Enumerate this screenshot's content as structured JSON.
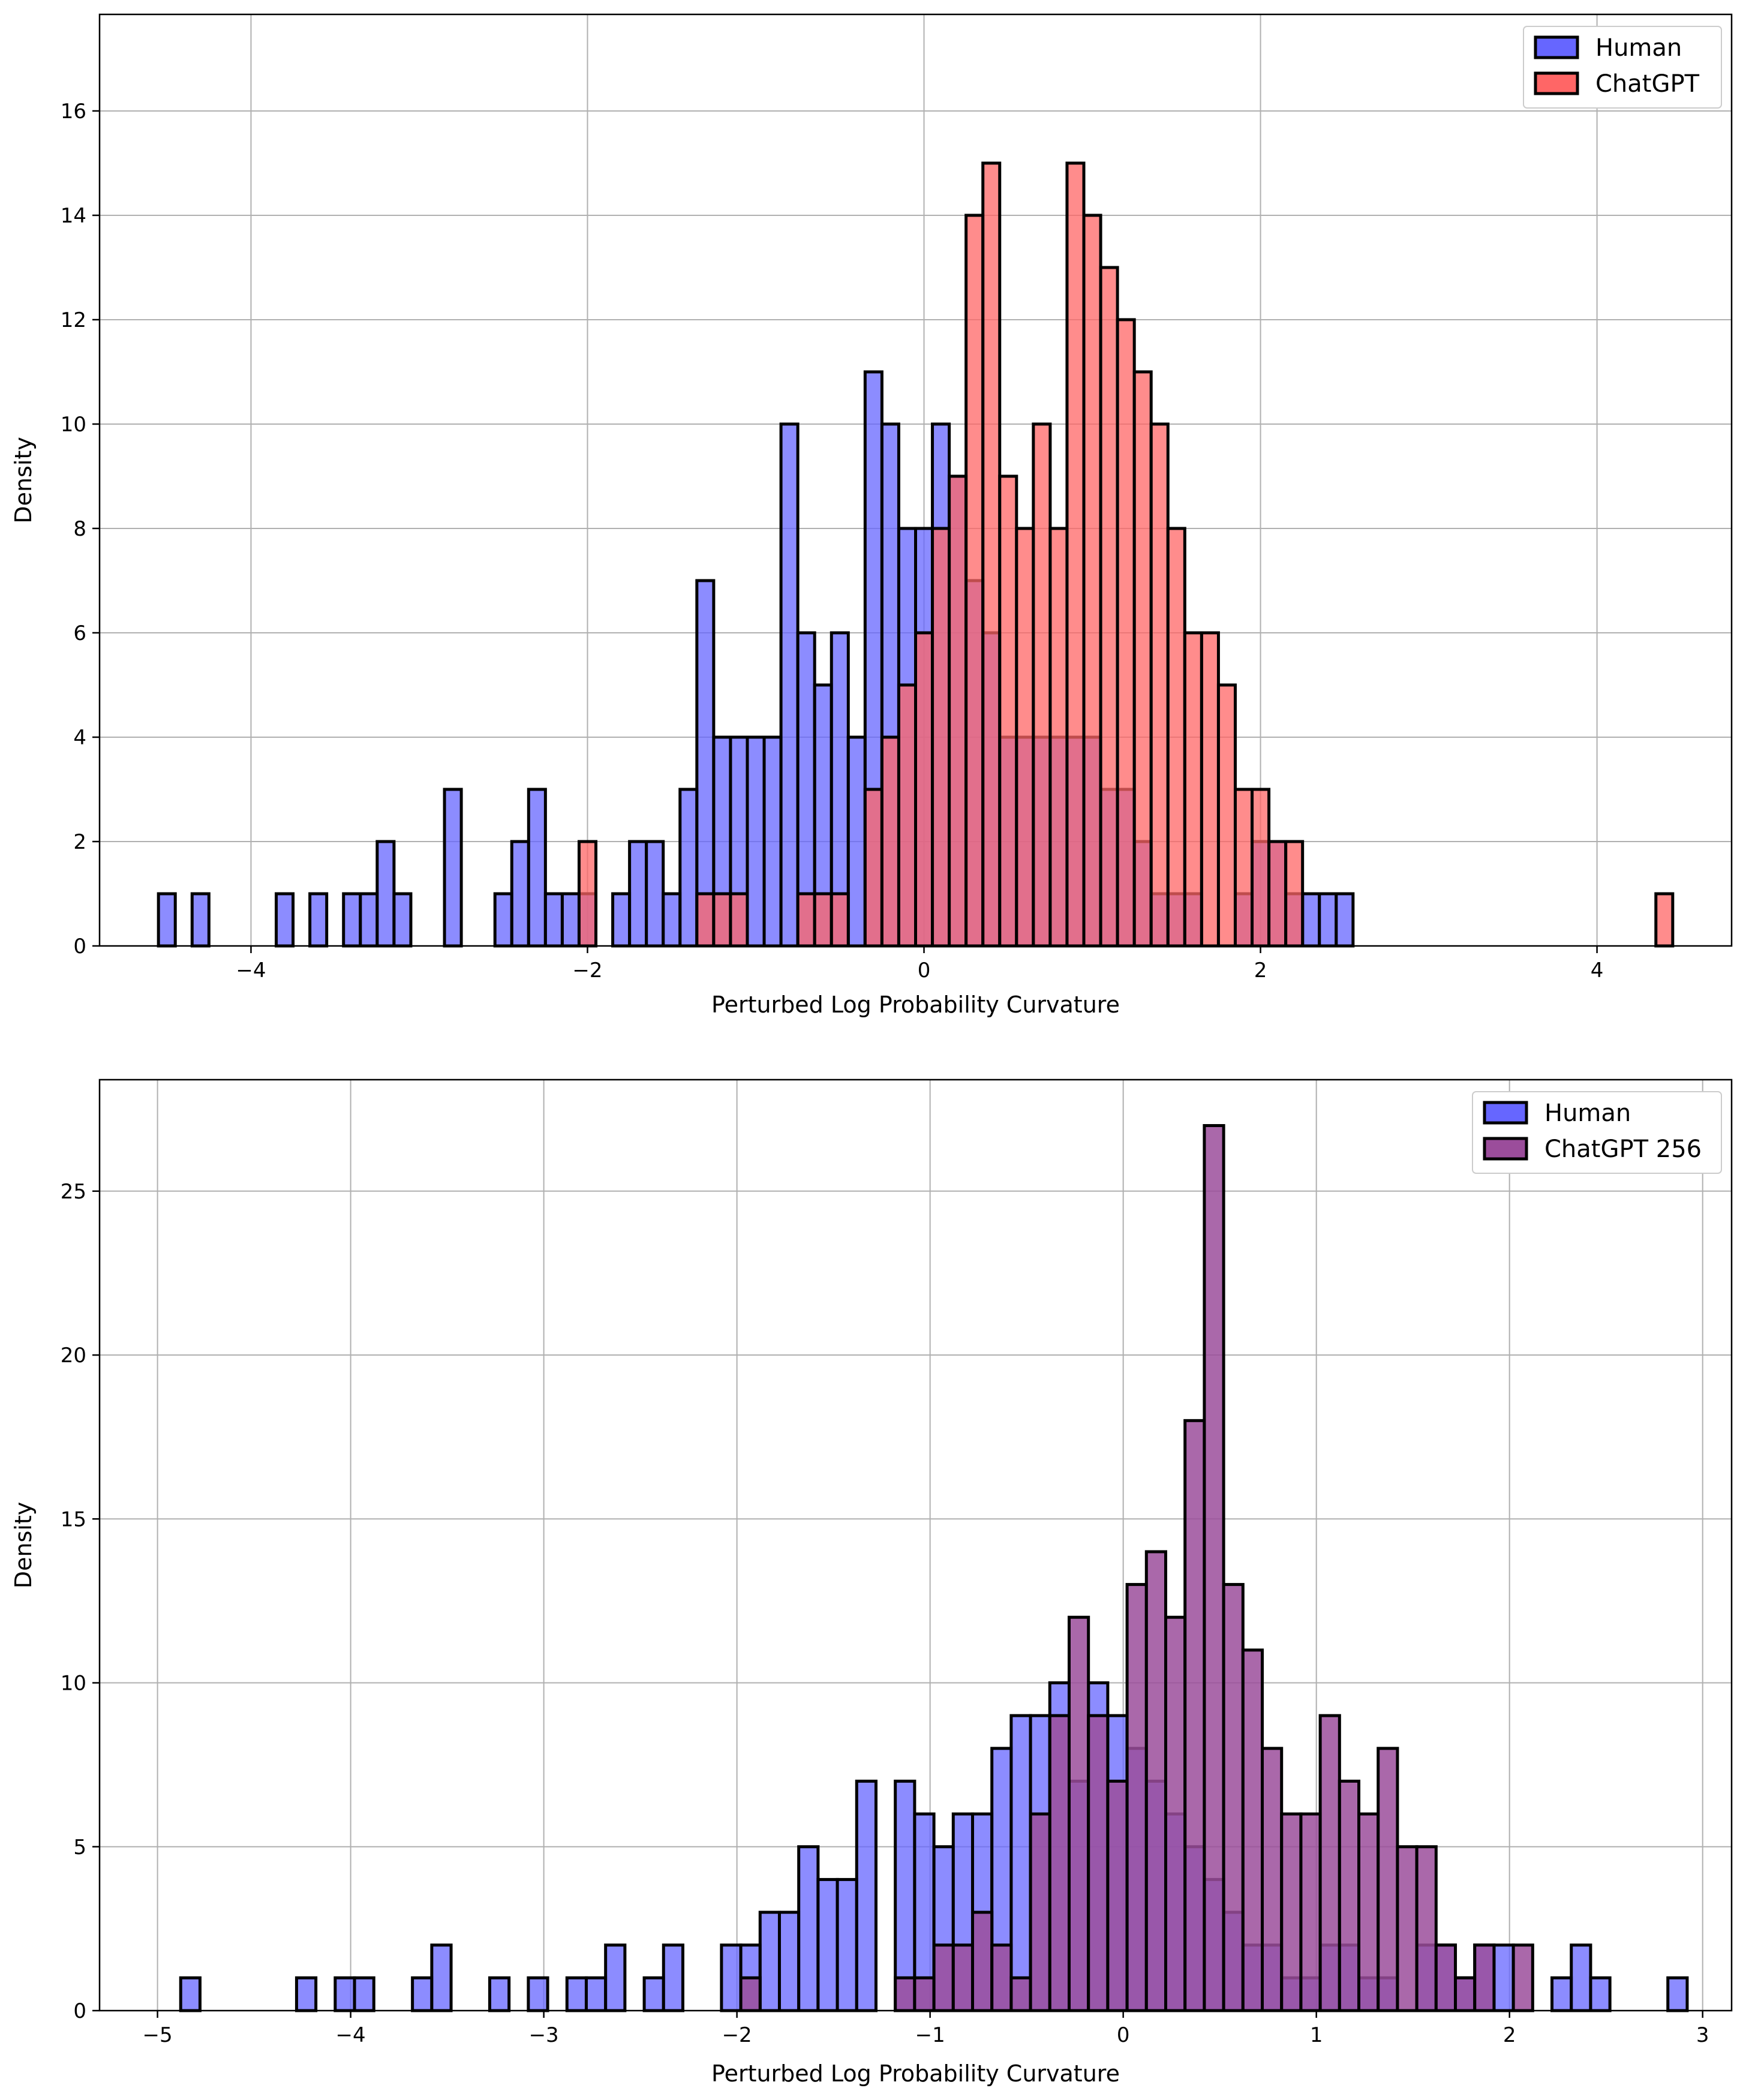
{
  "chart_data": [
    {
      "type": "histogram",
      "title": "",
      "xlabel": "Perturbed Log Probability Curvature",
      "ylabel": "Density",
      "xlim": [
        -4.9,
        4.8
      ],
      "ylim": [
        0,
        17.85
      ],
      "xticks": [
        -4,
        -2,
        0,
        2,
        4
      ],
      "xtick_labels": [
        "−4",
        "−2",
        "0",
        "2",
        "4"
      ],
      "yticks": [
        0,
        2,
        4,
        6,
        8,
        10,
        12,
        14,
        16
      ],
      "ytick_labels": [
        "0",
        "2",
        "4",
        "6",
        "8",
        "10",
        "12",
        "14",
        "16"
      ],
      "grid": true,
      "legend_position": "top-right",
      "series": [
        {
          "name": "Human",
          "color": "#6666ff",
          "bin_start": -4.55,
          "bin_width": 0.1,
          "values": [
            1,
            0,
            1,
            0,
            0,
            0,
            0,
            1,
            0,
            1,
            0,
            1,
            1,
            2,
            1,
            0,
            0,
            3,
            0,
            0,
            1,
            2,
            3,
            1,
            1,
            1,
            0,
            1,
            2,
            2,
            1,
            3,
            7,
            4,
            4,
            4,
            4,
            10,
            6,
            5,
            6,
            4,
            11,
            10,
            8,
            8,
            10,
            9,
            7,
            6,
            4,
            4,
            4,
            4,
            4,
            4,
            3,
            3,
            2,
            1,
            1,
            1,
            0,
            0,
            1,
            2,
            2,
            1,
            1,
            1,
            1,
            0,
            0,
            0,
            0,
            0,
            0,
            0,
            0,
            0,
            0,
            0,
            0,
            0,
            0,
            0,
            0,
            0,
            0
          ],
          "note": "bins from -4.55 to 2.65 (last bin holds 1 value near 2.55)"
        },
        {
          "name": "ChatGPT",
          "color": "#ff6666",
          "bin_start": -2.05,
          "bin_width": 0.1,
          "values": [
            2,
            0,
            0,
            0,
            0,
            0,
            0,
            1,
            1,
            1,
            0,
            0,
            0,
            1,
            1,
            1,
            0,
            3,
            4,
            5,
            6,
            8,
            9,
            14,
            15,
            9,
            8,
            10,
            8,
            15,
            14,
            13,
            12,
            11,
            10,
            8,
            6,
            6,
            5,
            3,
            3,
            2,
            2,
            0,
            0,
            0,
            0,
            0,
            0,
            0,
            0,
            0,
            0,
            0,
            0,
            0,
            0,
            0,
            0,
            0,
            0,
            0,
            0,
            0,
            1
          ],
          "note": "bins from -2.05; isolated bar at ~4.3"
        }
      ]
    },
    {
      "type": "histogram",
      "title": "",
      "xlabel": "Perturbed Log Probability Curvature",
      "ylabel": "Density",
      "xlim": [
        -5.3,
        3.15
      ],
      "ylim": [
        0,
        28.4
      ],
      "xticks": [
        -5,
        -4,
        -3,
        -2,
        -1,
        0,
        1,
        2,
        3
      ],
      "xtick_labels": [
        "−5",
        "−4",
        "−3",
        "−2",
        "−1",
        "0",
        "1",
        "2",
        "3"
      ],
      "yticks": [
        0,
        5,
        10,
        15,
        20,
        25
      ],
      "ytick_labels": [
        "0",
        "5",
        "10",
        "15",
        "20",
        "25"
      ],
      "grid": true,
      "legend_position": "top-right",
      "series": [
        {
          "name": "Human",
          "color": "#6666ff",
          "bin_start": -4.88,
          "bin_width": 0.1,
          "values": [
            1,
            0,
            0,
            0,
            0,
            0,
            1,
            0,
            1,
            1,
            0,
            0,
            1,
            2,
            0,
            0,
            1,
            0,
            1,
            0,
            1,
            1,
            2,
            0,
            1,
            2,
            0,
            0,
            2,
            2,
            3,
            3,
            5,
            4,
            4,
            7,
            0,
            7,
            6,
            5,
            6,
            6,
            8,
            9,
            9,
            10,
            7,
            10,
            9,
            8,
            7,
            6,
            5,
            4,
            3,
            2,
            2,
            1,
            1,
            2,
            2,
            1,
            1,
            0,
            2,
            2,
            1,
            2,
            2,
            0,
            0,
            1,
            2,
            1,
            0,
            0,
            0,
            1,
            0,
            0,
            0
          ],
          "note": "human curvature histogram, last bin near 2.85"
        },
        {
          "name": "ChatGPT 256",
          "color": "#9b4d9b",
          "bin_start": -1.98,
          "bin_width": 0.1,
          "values": [
            1,
            0,
            0,
            0,
            0,
            0,
            0,
            0,
            1,
            1,
            2,
            2,
            3,
            2,
            1,
            6,
            9,
            12,
            9,
            7,
            13,
            14,
            12,
            18,
            27,
            13,
            11,
            8,
            6,
            6,
            9,
            7,
            6,
            8,
            5,
            5,
            2,
            1,
            2,
            0,
            2,
            0,
            0,
            0,
            0,
            0,
            0,
            0,
            0
          ],
          "note": "purple histogram overlaid on human"
        }
      ]
    }
  ]
}
